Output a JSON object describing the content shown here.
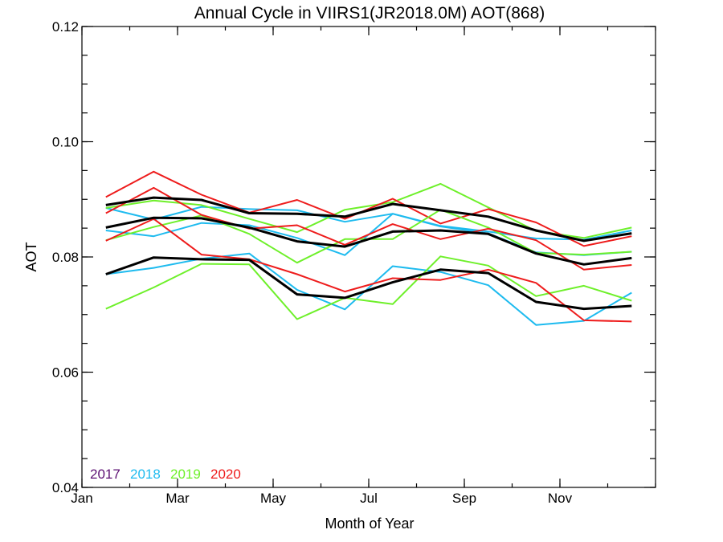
{
  "chart_data": {
    "type": "line",
    "title": "Annual Cycle in VIIRS1(JR2018.0M) AOT(868)",
    "xlabel": "Month of Year",
    "ylabel": "AOT",
    "xlim": [
      1,
      13
    ],
    "ylim": [
      0.04,
      0.12
    ],
    "x_ticks": [
      {
        "value": 1,
        "label": "Jan"
      },
      {
        "value": 3,
        "label": "Mar"
      },
      {
        "value": 5,
        "label": "May"
      },
      {
        "value": 7,
        "label": "Jul"
      },
      {
        "value": 9,
        "label": "Sep"
      },
      {
        "value": 11,
        "label": "Nov"
      }
    ],
    "y_ticks": [
      {
        "value": 0.04,
        "label": "0.04"
      },
      {
        "value": 0.06,
        "label": "0.06"
      },
      {
        "value": 0.08,
        "label": "0.08"
      },
      {
        "value": 0.1,
        "label": "0.10"
      },
      {
        "value": 0.12,
        "label": "0.12"
      }
    ],
    "x_minor_step": 1,
    "y_minor_step": 0.005,
    "grid": false,
    "legend_position": "bottom-left",
    "x": [
      1.5,
      2.5,
      3.5,
      4.5,
      5.5,
      6.5,
      7.5,
      8.5,
      9.5,
      10.5,
      11.5,
      12.5
    ],
    "legend": [
      {
        "name": "2017",
        "color": "#5b0f72"
      },
      {
        "name": "2018",
        "color": "#1ebbef"
      },
      {
        "name": "2019",
        "color": "#6ef02a"
      },
      {
        "name": "2020",
        "color": "#ee1c1c"
      }
    ],
    "series": [
      {
        "color": "#1ebbef",
        "values": [
          0.0885,
          0.0865,
          0.0887,
          0.0883,
          0.0881,
          0.0861,
          0.0875,
          0.0854,
          0.0844,
          0.0832,
          0.083,
          0.0846
        ]
      },
      {
        "color": "#6ef02a",
        "values": [
          0.0885,
          0.0898,
          0.089,
          0.0866,
          0.0843,
          0.0882,
          0.0895,
          0.0927,
          0.0886,
          0.0845,
          0.0833,
          0.0851
        ]
      },
      {
        "color": "#ee1c1c",
        "values": [
          0.0904,
          0.0948,
          0.0908,
          0.0877,
          0.0899,
          0.0866,
          0.0901,
          0.0858,
          0.0883,
          0.086,
          0.0819,
          0.0836
        ]
      },
      {
        "color": "#000000",
        "values": [
          0.089,
          0.0903,
          0.0899,
          0.0876,
          0.0875,
          0.087,
          0.0892,
          0.0881,
          0.087,
          0.0846,
          0.0828,
          0.0841
        ]
      },
      {
        "color": "#1ebbef",
        "values": [
          0.0846,
          0.0836,
          0.0859,
          0.0855,
          0.0833,
          0.0803,
          0.0875,
          0.0853,
          0.0841,
          0.0808,
          0.0803,
          0.0809
        ]
      },
      {
        "color": "#6ef02a",
        "values": [
          0.0829,
          0.0852,
          0.0872,
          0.084,
          0.079,
          0.0831,
          0.0831,
          0.0882,
          0.0851,
          0.0807,
          0.0804,
          0.0809
        ]
      },
      {
        "color": "#ee1c1c",
        "values": [
          0.0876,
          0.092,
          0.0873,
          0.0849,
          0.0855,
          0.0821,
          0.0857,
          0.0831,
          0.0849,
          0.0829,
          0.0778,
          0.0786
        ]
      },
      {
        "color": "#000000",
        "values": [
          0.0851,
          0.0868,
          0.0867,
          0.0851,
          0.0827,
          0.0818,
          0.0844,
          0.0846,
          0.084,
          0.0806,
          0.0787,
          0.0798
        ]
      },
      {
        "color": "#1ebbef",
        "values": [
          0.077,
          0.0781,
          0.0797,
          0.0806,
          0.0743,
          0.0709,
          0.0784,
          0.0774,
          0.0751,
          0.0682,
          0.0689,
          0.0738
        ]
      },
      {
        "color": "#6ef02a",
        "values": [
          0.071,
          0.0747,
          0.0788,
          0.0787,
          0.0692,
          0.0729,
          0.0718,
          0.0801,
          0.0785,
          0.0732,
          0.075,
          0.0724
        ]
      },
      {
        "color": "#ee1c1c",
        "values": [
          0.0828,
          0.0866,
          0.0804,
          0.0796,
          0.077,
          0.074,
          0.0763,
          0.076,
          0.0778,
          0.0755,
          0.069,
          0.0688
        ]
      },
      {
        "color": "#000000",
        "values": [
          0.077,
          0.0799,
          0.0796,
          0.0795,
          0.0735,
          0.0729,
          0.0756,
          0.0778,
          0.0772,
          0.0722,
          0.071,
          0.0715
        ]
      }
    ]
  }
}
